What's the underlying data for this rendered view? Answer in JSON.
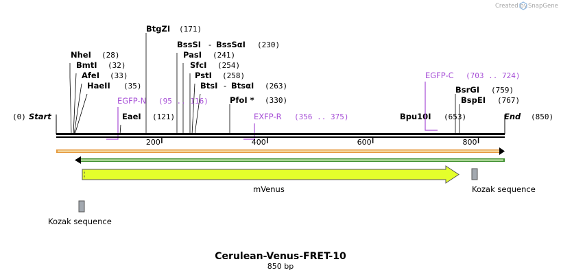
{
  "credit": {
    "prefix": "Created by",
    "brand": "SnapGene"
  },
  "map": {
    "start_pos": "(0)",
    "start_label": "Start",
    "end_label": "End",
    "end_pos": "(850)",
    "seq_length": 850,
    "ruler": [
      {
        "pos": 200,
        "label": "200"
      },
      {
        "pos": 400,
        "label": "400"
      },
      {
        "pos": 600,
        "label": "600"
      },
      {
        "pos": 800,
        "label": "800"
      }
    ]
  },
  "sites": [
    {
      "name": "NheI",
      "pos": 28,
      "pos_text": "(28)"
    },
    {
      "name": "BmtI",
      "pos": 32,
      "pos_text": "(32)"
    },
    {
      "name": "AfeI",
      "pos": 33,
      "pos_text": "(33)"
    },
    {
      "name": "HaeII",
      "pos": 35,
      "pos_text": "(35)"
    },
    {
      "name": "EaeI",
      "pos": 121,
      "pos_text": "(121)"
    },
    {
      "name": "BtgZI",
      "pos": 171,
      "pos_text": "(171)"
    },
    {
      "name": "BssSI",
      "alt": "BssSαI",
      "pos": 230,
      "pos_text": "(230)"
    },
    {
      "name": "PasI",
      "pos": 241,
      "pos_text": "(241)"
    },
    {
      "name": "SfcI",
      "pos": 254,
      "pos_text": "(254)"
    },
    {
      "name": "PstI",
      "pos": 258,
      "pos_text": "(258)"
    },
    {
      "name": "BtsI",
      "alt": "BtsαI",
      "pos": 263,
      "pos_text": "(263)"
    },
    {
      "name": "PfoI *",
      "pos": 330,
      "pos_text": "(330)"
    },
    {
      "name": "Bpu10I",
      "pos": 653,
      "pos_text": "(653)"
    },
    {
      "name": "BsrGI",
      "pos": 759,
      "pos_text": "(759)"
    },
    {
      "name": "BspEI",
      "pos": 767,
      "pos_text": "(767)"
    }
  ],
  "primers": [
    {
      "name": "EGFP-N",
      "range": "(95 .. 116)"
    },
    {
      "name": "EXFP-R",
      "range": "(356 .. 375)"
    },
    {
      "name": "EGFP-C",
      "range": "(703 .. 724)"
    }
  ],
  "features": [
    {
      "name": "mVenus",
      "color": "#e4ff2b"
    },
    {
      "name": "Kozak sequence",
      "color": "#a3a9b0"
    },
    {
      "name": "Kozak sequence",
      "color": "#a3a9b0"
    }
  ],
  "colors": {
    "orange_track": "#e59a3f",
    "green_track": "#3f8f2f",
    "primer": "#a64ed6"
  },
  "footer": {
    "title": "Cerulean-Venus-FRET-10",
    "length": "850 bp"
  }
}
